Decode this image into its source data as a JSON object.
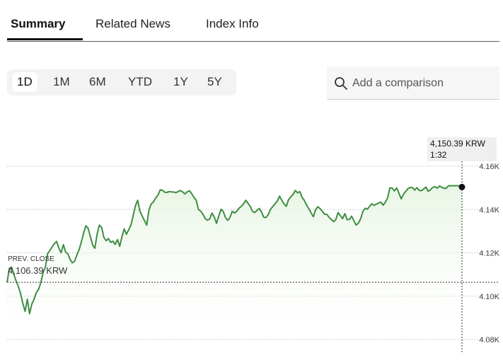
{
  "tabs": [
    {
      "label": "Summary",
      "active": true
    },
    {
      "label": "Related News",
      "active": false
    },
    {
      "label": "Index Info",
      "active": false
    }
  ],
  "ranges": [
    {
      "label": "1D",
      "active": true
    },
    {
      "label": "1M",
      "active": false
    },
    {
      "label": "6M",
      "active": false
    },
    {
      "label": "YTD",
      "active": false
    },
    {
      "label": "1Y",
      "active": false
    },
    {
      "label": "5Y",
      "active": false
    }
  ],
  "comparison": {
    "placeholder": "Add a comparison",
    "icon": "search-icon"
  },
  "tooltip": {
    "value": "4,150.39 KRW",
    "time": "1:32"
  },
  "prev_close": {
    "label": "PREV. CLOSE",
    "value": "4,106.39 KRW"
  },
  "colors": {
    "line": "#3e8e41",
    "fill": "#e7f4e3",
    "grid": "#c8c8c8"
  },
  "chart_data": {
    "type": "line",
    "y_ticks": [
      "4.16K",
      "4.14K",
      "4.12K",
      "4.10K",
      "4.08K"
    ],
    "ylim": [
      4080,
      4160
    ],
    "grid": true,
    "prev_close": 4106.39,
    "last": 4150.39,
    "values": [
      4106.4,
      4112.8,
      4113.4,
      4110.1,
      4107.1,
      4104.5,
      4101.2,
      4096.6,
      4093.0,
      4098.6,
      4091.9,
      4096.4,
      4098.6,
      4101.7,
      4103.2,
      4106.3,
      4110.9,
      4113.4,
      4119.6,
      4121.1,
      4122.8,
      4124.2,
      4125.3,
      4122.3,
      4120.0,
      4123.8,
      4120.3,
      4119.6,
      4116.9,
      4115.4,
      4116.1,
      4119.1,
      4121.5,
      4125.1,
      4129.1,
      4132.5,
      4131.3,
      4127.4,
      4123.7,
      4122.1,
      4128.7,
      4132.8,
      4131.7,
      4127.1,
      4125.6,
      4126.6,
      4124.8,
      4125.4,
      4123.9,
      4126.1,
      4123.0,
      4127.3,
      4131.0,
      4128.6,
      4130.6,
      4132.8,
      4137.3,
      4141.7,
      4144.3,
      4139.2,
      4137.0,
      4134.9,
      4132.8,
      4139.8,
      4142.6,
      4143.5,
      4145.3,
      4146.7,
      4149.1,
      4148.9,
      4148.0,
      4147.9,
      4148.3,
      4148.1,
      4148.1,
      4147.8,
      4148.3,
      4148.8,
      4148.1,
      4147.2,
      4148.2,
      4148.7,
      4147.3,
      4145.6,
      4144.3,
      4140.0,
      4139.2,
      4137.8,
      4135.8,
      4135.1,
      4135.7,
      4138.4,
      4136.6,
      4133.6,
      4136.9,
      4140.1,
      4139.1,
      4136.2,
      4135.0,
      4136.4,
      4139.2,
      4138.4,
      4139.2,
      4140.6,
      4141.5,
      4142.6,
      4144.3,
      4142.9,
      4141.4,
      4139.1,
      4138.6,
      4139.6,
      4140.5,
      4138.8,
      4136.4,
      4136.3,
      4137.7,
      4140.1,
      4141.4,
      4142.7,
      4143.9,
      4146.2,
      4144.3,
      4142.6,
      4141.5,
      4144.6,
      4145.9,
      4147.0,
      4148.8,
      4147.7,
      4148.3,
      4145.6,
      4144.2,
      4142.0,
      4140.4,
      4138.5,
      4136.7,
      4139.9,
      4141.3,
      4140.4,
      4139.2,
      4137.8,
      4137.8,
      4136.4,
      4135.4,
      4134.4,
      4135.4,
      4138.6,
      4137.2,
      4135.8,
      4138.1,
      4135.3,
      4135.4,
      4136.9,
      4134.9,
      4132.8,
      4133.7,
      4135.7,
      4139.1,
      4140.6,
      4140.1,
      4141.5,
      4142.7,
      4141.9,
      4142.5,
      4143.0,
      4143.4,
      4142.0,
      4143.4,
      4145.5,
      4150.0,
      4149.9,
      4148.6,
      4150.0,
      4147.6,
      4144.9,
      4147.0,
      4148.3,
      4149.6,
      4150.2,
      4150.1,
      4149.0,
      4150.1,
      4148.8,
      4148.7,
      4149.5,
      4150.4,
      4148.4,
      4149.1,
      4150.2,
      4150.6,
      4149.8,
      4150.9,
      4150.3,
      4149.8,
      4149.8,
      4151.0,
      4151.0,
      4151.0,
      4151.0,
      4151.0,
      4151.0,
      4150.4
    ]
  }
}
